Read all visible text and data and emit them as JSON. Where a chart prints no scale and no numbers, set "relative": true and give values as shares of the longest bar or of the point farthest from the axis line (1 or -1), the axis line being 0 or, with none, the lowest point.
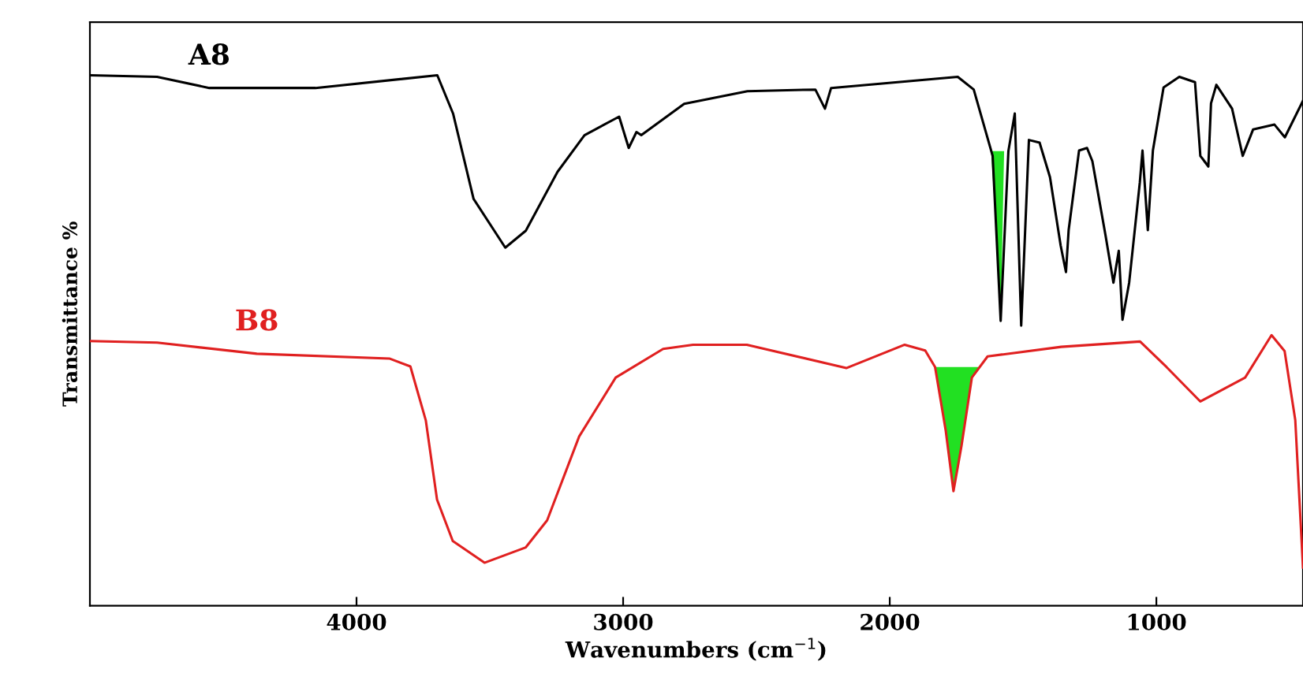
{
  "chart_data": {
    "type": "line",
    "relative": true,
    "ylabel": "Transmittance %",
    "xlabel": "Wavenumbers (cm$^{−1}$)",
    "xlim": [
      5000,
      450
    ],
    "xticks": [
      4000,
      3000,
      2000,
      1000
    ],
    "grid": false,
    "legend": false,
    "marker": "none",
    "line_style": "solid",
    "series": [
      {
        "name": "A8",
        "color": "#000000",
        "x": [
          5000,
          4748,
          4552,
          4154,
          3697,
          3638,
          3561,
          3442,
          3365,
          3246,
          3145,
          3015,
          2979,
          2950,
          2932,
          2771,
          2534,
          2279,
          2243,
          2220,
          1745,
          1685,
          1614,
          1584,
          1555,
          1531,
          1507,
          1478,
          1438,
          1399,
          1359,
          1339,
          1329,
          1290,
          1260,
          1240,
          1191,
          1161,
          1141,
          1127,
          1102,
          1062,
          1052,
          1032,
          1013,
          973,
          914,
          855,
          835,
          805,
          795,
          775,
          716,
          676,
          637,
          557,
          518,
          450
        ],
        "values": [
          1.0,
          0.997,
          0.976,
          0.976,
          1.0,
          0.928,
          0.767,
          0.675,
          0.707,
          0.818,
          0.887,
          0.922,
          0.863,
          0.893,
          0.887,
          0.946,
          0.97,
          0.973,
          0.937,
          0.976,
          0.997,
          0.973,
          0.848,
          0.537,
          0.857,
          0.928,
          0.528,
          0.878,
          0.873,
          0.808,
          0.679,
          0.629,
          0.708,
          0.858,
          0.863,
          0.838,
          0.699,
          0.609,
          0.669,
          0.539,
          0.609,
          0.798,
          0.858,
          0.708,
          0.858,
          0.977,
          0.997,
          0.987,
          0.848,
          0.828,
          0.947,
          0.982,
          0.937,
          0.848,
          0.898,
          0.907,
          0.883,
          0.952
        ]
      },
      {
        "name": "B8",
        "color": "#e02020",
        "x": [
          5000,
          4748,
          4374,
          3877,
          3798,
          3740,
          3698,
          3639,
          3520,
          3365,
          3285,
          3165,
          3028,
          2850,
          2738,
          2536,
          2163,
          1944,
          1867,
          1830,
          1790,
          1761,
          1731,
          1692,
          1633,
          1357,
          1061,
          962,
          835,
          667,
          568,
          519,
          479,
          450
        ],
        "values": [
          0.499,
          0.496,
          0.475,
          0.466,
          0.451,
          0.349,
          0.2,
          0.122,
          0.081,
          0.11,
          0.161,
          0.319,
          0.43,
          0.484,
          0.492,
          0.492,
          0.448,
          0.492,
          0.481,
          0.45,
          0.33,
          0.216,
          0.301,
          0.43,
          0.47,
          0.488,
          0.498,
          0.45,
          0.385,
          0.43,
          0.51,
          0.48,
          0.35,
          0.072
        ]
      },
      {
        "type": "area",
        "color": "#22e022",
        "x": [
          1850,
          1830,
          1790,
          1761,
          1731,
          1692,
          1665
        ],
        "values": [
          0.45,
          0.45,
          0.33,
          0.216,
          0.301,
          0.43,
          0.45
        ]
      },
      {
        "type": "area",
        "color": "#22e022",
        "x": [
          1620,
          1600,
          1584,
          1571
        ],
        "values": [
          0.857,
          0.7,
          0.537,
          0.857
        ]
      }
    ]
  }
}
